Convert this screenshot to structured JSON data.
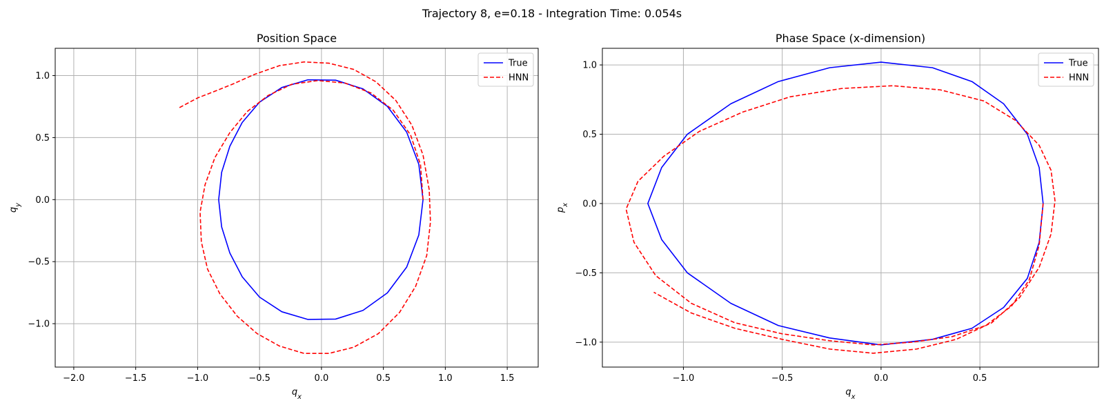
{
  "figure": {
    "suptitle": "Trajectory 8, e=0.18 - Integration Time: 0.054s"
  },
  "colors": {
    "true": "#0000ff",
    "hnn": "#ff0000",
    "grid": "#b0b0b0"
  },
  "chart_data": [
    {
      "type": "line",
      "title": "Position Space",
      "xlabel": "q_x",
      "ylabel": "q_y",
      "xlim": [
        -2.15,
        1.75
      ],
      "ylim": [
        -1.35,
        1.22
      ],
      "xticks": [
        -2.0,
        -1.5,
        -1.0,
        -0.5,
        0.0,
        0.5,
        1.0,
        1.5
      ],
      "yticks": [
        -1.0,
        -0.5,
        0.0,
        0.5,
        1.0
      ],
      "xtick_labels": [
        "−2.0",
        "−1.5",
        "−1.0",
        "−0.5",
        "0.0",
        "0.5",
        "1.0",
        "1.5"
      ],
      "ytick_labels": [
        "−1.0",
        "−0.5",
        "0.0",
        "0.5",
        "1.0"
      ],
      "grid": true,
      "legend_position": "top-right",
      "series": [
        {
          "name": "True",
          "style": "solid",
          "color": "#0000ff",
          "points": [
            [
              0.82,
              0.0
            ],
            [
              0.786,
              0.285
            ],
            [
              0.688,
              0.544
            ],
            [
              0.532,
              0.752
            ],
            [
              0.335,
              0.893
            ],
            [
              0.114,
              0.963
            ],
            [
              -0.109,
              0.966
            ],
            [
              -0.32,
              0.904
            ],
            [
              -0.5,
              0.786
            ],
            [
              -0.64,
              0.622
            ],
            [
              -0.74,
              0.43
            ],
            [
              -0.806,
              0.22
            ],
            [
              -0.83,
              0.0
            ],
            [
              -0.806,
              -0.22
            ],
            [
              -0.74,
              -0.43
            ],
            [
              -0.64,
              -0.622
            ],
            [
              -0.5,
              -0.786
            ],
            [
              -0.32,
              -0.904
            ],
            [
              -0.109,
              -0.966
            ],
            [
              0.114,
              -0.963
            ],
            [
              0.335,
              -0.893
            ],
            [
              0.532,
              -0.752
            ],
            [
              0.688,
              -0.544
            ],
            [
              0.786,
              -0.285
            ],
            [
              0.82,
              0.0
            ]
          ]
        },
        {
          "name": "HNN",
          "style": "dashed",
          "color": "#ff0000",
          "points": [
            [
              0.82,
              0.0
            ],
            [
              0.8,
              0.28
            ],
            [
              0.72,
              0.52
            ],
            [
              0.58,
              0.72
            ],
            [
              0.4,
              0.86
            ],
            [
              0.19,
              0.94
            ],
            [
              -0.03,
              0.96
            ],
            [
              -0.24,
              0.93
            ],
            [
              -0.43,
              0.84
            ],
            [
              -0.6,
              0.71
            ],
            [
              -0.74,
              0.54
            ],
            [
              -0.86,
              0.34
            ],
            [
              -0.94,
              0.12
            ],
            [
              -0.98,
              -0.1
            ],
            [
              -0.97,
              -0.34
            ],
            [
              -0.92,
              -0.56
            ],
            [
              -0.82,
              -0.76
            ],
            [
              -0.68,
              -0.94
            ],
            [
              -0.52,
              -1.08
            ],
            [
              -0.34,
              -1.18
            ],
            [
              -0.14,
              -1.24
            ],
            [
              0.06,
              -1.24
            ],
            [
              0.26,
              -1.19
            ],
            [
              0.46,
              -1.08
            ],
            [
              0.63,
              -0.91
            ],
            [
              0.76,
              -0.7
            ],
            [
              0.85,
              -0.45
            ],
            [
              0.88,
              -0.18
            ],
            [
              0.87,
              0.08
            ],
            [
              0.82,
              0.36
            ],
            [
              0.73,
              0.6
            ],
            [
              0.6,
              0.8
            ],
            [
              0.44,
              0.95
            ],
            [
              0.26,
              1.05
            ],
            [
              0.06,
              1.1
            ],
            [
              -0.14,
              1.11
            ],
            [
              -0.34,
              1.08
            ],
            [
              -0.54,
              1.01
            ],
            [
              -0.72,
              0.93
            ],
            [
              -0.87,
              0.87
            ],
            [
              -1.0,
              0.82
            ],
            [
              -1.15,
              0.74
            ]
          ]
        }
      ]
    },
    {
      "type": "line",
      "title": "Phase Space (x-dimension)",
      "xlabel": "q_x",
      "ylabel": "p_x",
      "xlim": [
        -1.41,
        1.1
      ],
      "ylim": [
        -1.18,
        1.12
      ],
      "xticks": [
        -1.0,
        -0.5,
        0.0,
        0.5
      ],
      "yticks": [
        -1.0,
        -0.5,
        0.0,
        0.5,
        1.0
      ],
      "xtick_labels": [
        "−1.0",
        "−0.5",
        "0.0",
        "0.5"
      ],
      "ytick_labels": [
        "−1.0",
        "−0.5",
        "0.0",
        "0.5",
        "1.0"
      ],
      "grid": true,
      "legend_position": "top-right",
      "series": [
        {
          "name": "True",
          "style": "solid",
          "color": "#0000ff",
          "points": [
            [
              0.82,
              0.0
            ],
            [
              0.8,
              -0.28
            ],
            [
              0.74,
              -0.54
            ],
            [
              0.62,
              -0.75
            ],
            [
              0.46,
              -0.9
            ],
            [
              0.26,
              -0.98
            ],
            [
              0.0,
              -1.02
            ],
            [
              -0.26,
              -0.97
            ],
            [
              -0.52,
              -0.88
            ],
            [
              -0.76,
              -0.72
            ],
            [
              -0.98,
              -0.5
            ],
            [
              -1.11,
              -0.26
            ],
            [
              -1.18,
              0.0
            ],
            [
              -1.11,
              0.26
            ],
            [
              -0.98,
              0.5
            ],
            [
              -0.76,
              0.72
            ],
            [
              -0.52,
              0.88
            ],
            [
              -0.26,
              0.98
            ],
            [
              0.0,
              1.02
            ],
            [
              0.26,
              0.98
            ],
            [
              0.46,
              0.88
            ],
            [
              0.62,
              0.72
            ],
            [
              0.74,
              0.5
            ],
            [
              0.8,
              0.26
            ],
            [
              0.82,
              0.0
            ]
          ]
        },
        {
          "name": "HNN",
          "style": "dashed",
          "color": "#ff0000",
          "points": [
            [
              0.82,
              0.0
            ],
            [
              0.8,
              -0.3
            ],
            [
              0.75,
              -0.55
            ],
            [
              0.66,
              -0.74
            ],
            [
              0.53,
              -0.88
            ],
            [
              0.36,
              -0.96
            ],
            [
              0.16,
              -1.0
            ],
            [
              -0.04,
              -1.02
            ],
            [
              -0.26,
              -0.99
            ],
            [
              -0.5,
              -0.94
            ],
            [
              -0.74,
              -0.86
            ],
            [
              -0.96,
              -0.72
            ],
            [
              -1.14,
              -0.52
            ],
            [
              -1.25,
              -0.28
            ],
            [
              -1.29,
              -0.04
            ],
            [
              -1.23,
              0.16
            ],
            [
              -1.1,
              0.34
            ],
            [
              -0.92,
              0.52
            ],
            [
              -0.7,
              0.66
            ],
            [
              -0.46,
              0.77
            ],
            [
              -0.2,
              0.83
            ],
            [
              0.06,
              0.85
            ],
            [
              0.3,
              0.82
            ],
            [
              0.52,
              0.74
            ],
            [
              0.68,
              0.6
            ],
            [
              0.8,
              0.42
            ],
            [
              0.86,
              0.24
            ],
            [
              0.88,
              0.02
            ],
            [
              0.86,
              -0.22
            ],
            [
              0.8,
              -0.46
            ],
            [
              0.7,
              -0.68
            ],
            [
              0.56,
              -0.86
            ],
            [
              0.38,
              -0.98
            ],
            [
              0.18,
              -1.05
            ],
            [
              -0.04,
              -1.08
            ],
            [
              -0.26,
              -1.05
            ],
            [
              -0.5,
              -0.98
            ],
            [
              -0.74,
              -0.9
            ],
            [
              -0.96,
              -0.79
            ],
            [
              -1.15,
              -0.64
            ]
          ]
        }
      ]
    }
  ]
}
